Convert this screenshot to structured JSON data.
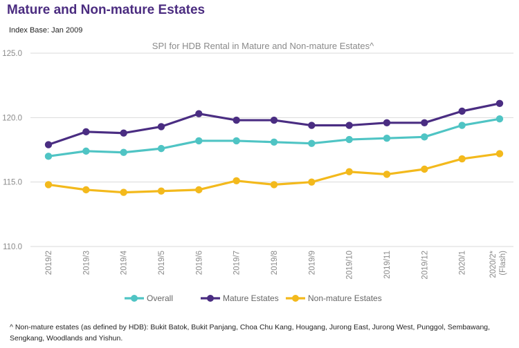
{
  "heading": "Mature and Non-mature Estates",
  "index_base": "Index Base: Jan 2009",
  "footnote": "^ Non-mature estates (as defined by HDB): Bukit Batok, Bukit Panjang, Choa Chu Kang, Hougang, Jurong East, Jurong West, Punggol, Sembawang, Sengkang, Woodlands and Yishun.",
  "colors": {
    "overall": "#4fc4c4",
    "mature": "#4a2d82",
    "non_mature": "#f3b91c",
    "grid": "#d9d9d9",
    "axis_text": "#8a8a8a"
  },
  "chart_data": {
    "type": "line",
    "title": "SPI for HDB Rental in Mature and Non-mature Estates^",
    "xlabel": "",
    "ylabel": "",
    "ylim": [
      110,
      125
    ],
    "yticks": [
      "125.0",
      "120.0",
      "115.0",
      "110.0"
    ],
    "grid": true,
    "legend_position": "bottom",
    "categories": [
      "2019/2",
      "2019/3",
      "2019/4",
      "2019/5",
      "2019/6",
      "2019/7",
      "2019/8",
      "2019/9",
      "2019/10",
      "2019/11",
      "2019/12",
      "2020/1",
      "2020/2*"
    ],
    "category_notes": [
      "",
      "",
      "",
      "",
      "",
      "",
      "",
      "",
      "",
      "",
      "",
      "",
      "(Flash)"
    ],
    "series": [
      {
        "name": "Overall",
        "color_key": "overall",
        "values": [
          117.0,
          117.4,
          117.3,
          117.6,
          118.2,
          118.2,
          118.1,
          118.0,
          118.3,
          118.4,
          118.5,
          119.4,
          119.9
        ]
      },
      {
        "name": "Mature Estates",
        "color_key": "mature",
        "values": [
          117.9,
          118.9,
          118.8,
          119.3,
          120.3,
          119.8,
          119.8,
          119.4,
          119.4,
          119.6,
          119.6,
          120.5,
          121.1
        ]
      },
      {
        "name": "Non-mature Estates",
        "color_key": "non_mature",
        "values": [
          114.8,
          114.4,
          114.2,
          114.3,
          114.4,
          115.1,
          114.8,
          115.0,
          115.8,
          115.6,
          116.0,
          116.8,
          117.2
        ]
      }
    ]
  }
}
